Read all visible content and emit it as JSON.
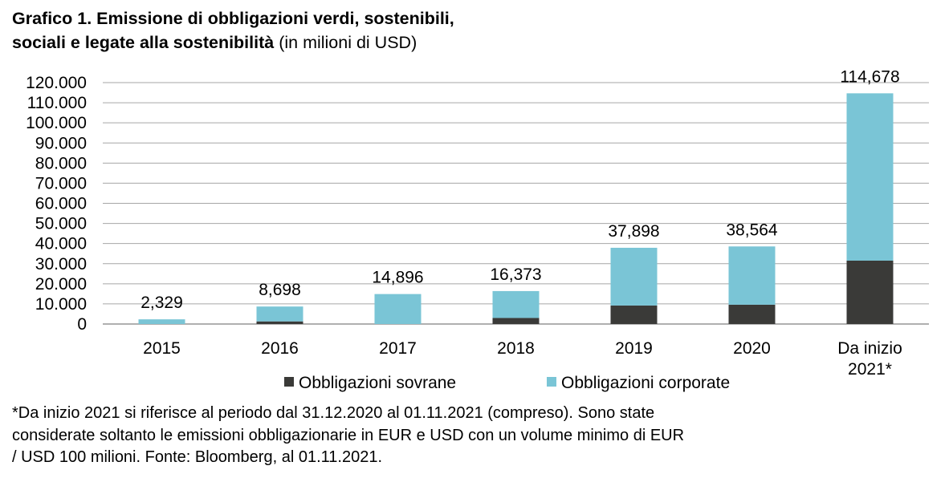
{
  "title": {
    "bold_line1": "Grafico 1. Emissione di obbligazioni verdi, sostenibili,",
    "bold_line2": "sociali e legate alla sostenibilità",
    "unit": "(in milioni di USD)"
  },
  "chart_data": {
    "type": "bar",
    "stacked": true,
    "categories": [
      "2015",
      "2016",
      "2017",
      "2018",
      "2019",
      "2020",
      "Da inizio 2021*"
    ],
    "series": [
      {
        "name": "Obbligazioni sovrane",
        "color": "#3a3a38",
        "values": [
          0,
          1300,
          0,
          3000,
          9200,
          9600,
          31500
        ]
      },
      {
        "name": "Obbligazioni corporate",
        "color": "#7ac5d6",
        "values": [
          2329,
          7398,
          14896,
          13373,
          28698,
          28964,
          83178
        ]
      }
    ],
    "total_labels": [
      "2,329",
      "8,698",
      "14,896",
      "16,373",
      "37,898",
      "38,564",
      "114,678"
    ],
    "y_ticks": [
      "0",
      "10.000",
      "20.000",
      "30.000",
      "40.000",
      "50.000",
      "60.000",
      "70.000",
      "80.000",
      "90.000",
      "100.000",
      "110.000",
      "120.000"
    ],
    "ylim": [
      0,
      120000
    ],
    "ytick_step": 10000,
    "grid": true,
    "legend_position": "bottom"
  },
  "footnote": {
    "line1": "*Da inizio 2021 si riferisce al periodo dal 31.12.2020 al 01.11.2021 (compreso). Sono state",
    "line2": "considerate soltanto le emissioni obbligazionarie in EUR e USD con un volume minimo di EUR",
    "line3": "/ USD 100 milioni. Fonte: Bloomberg, al 01.11.2021."
  }
}
